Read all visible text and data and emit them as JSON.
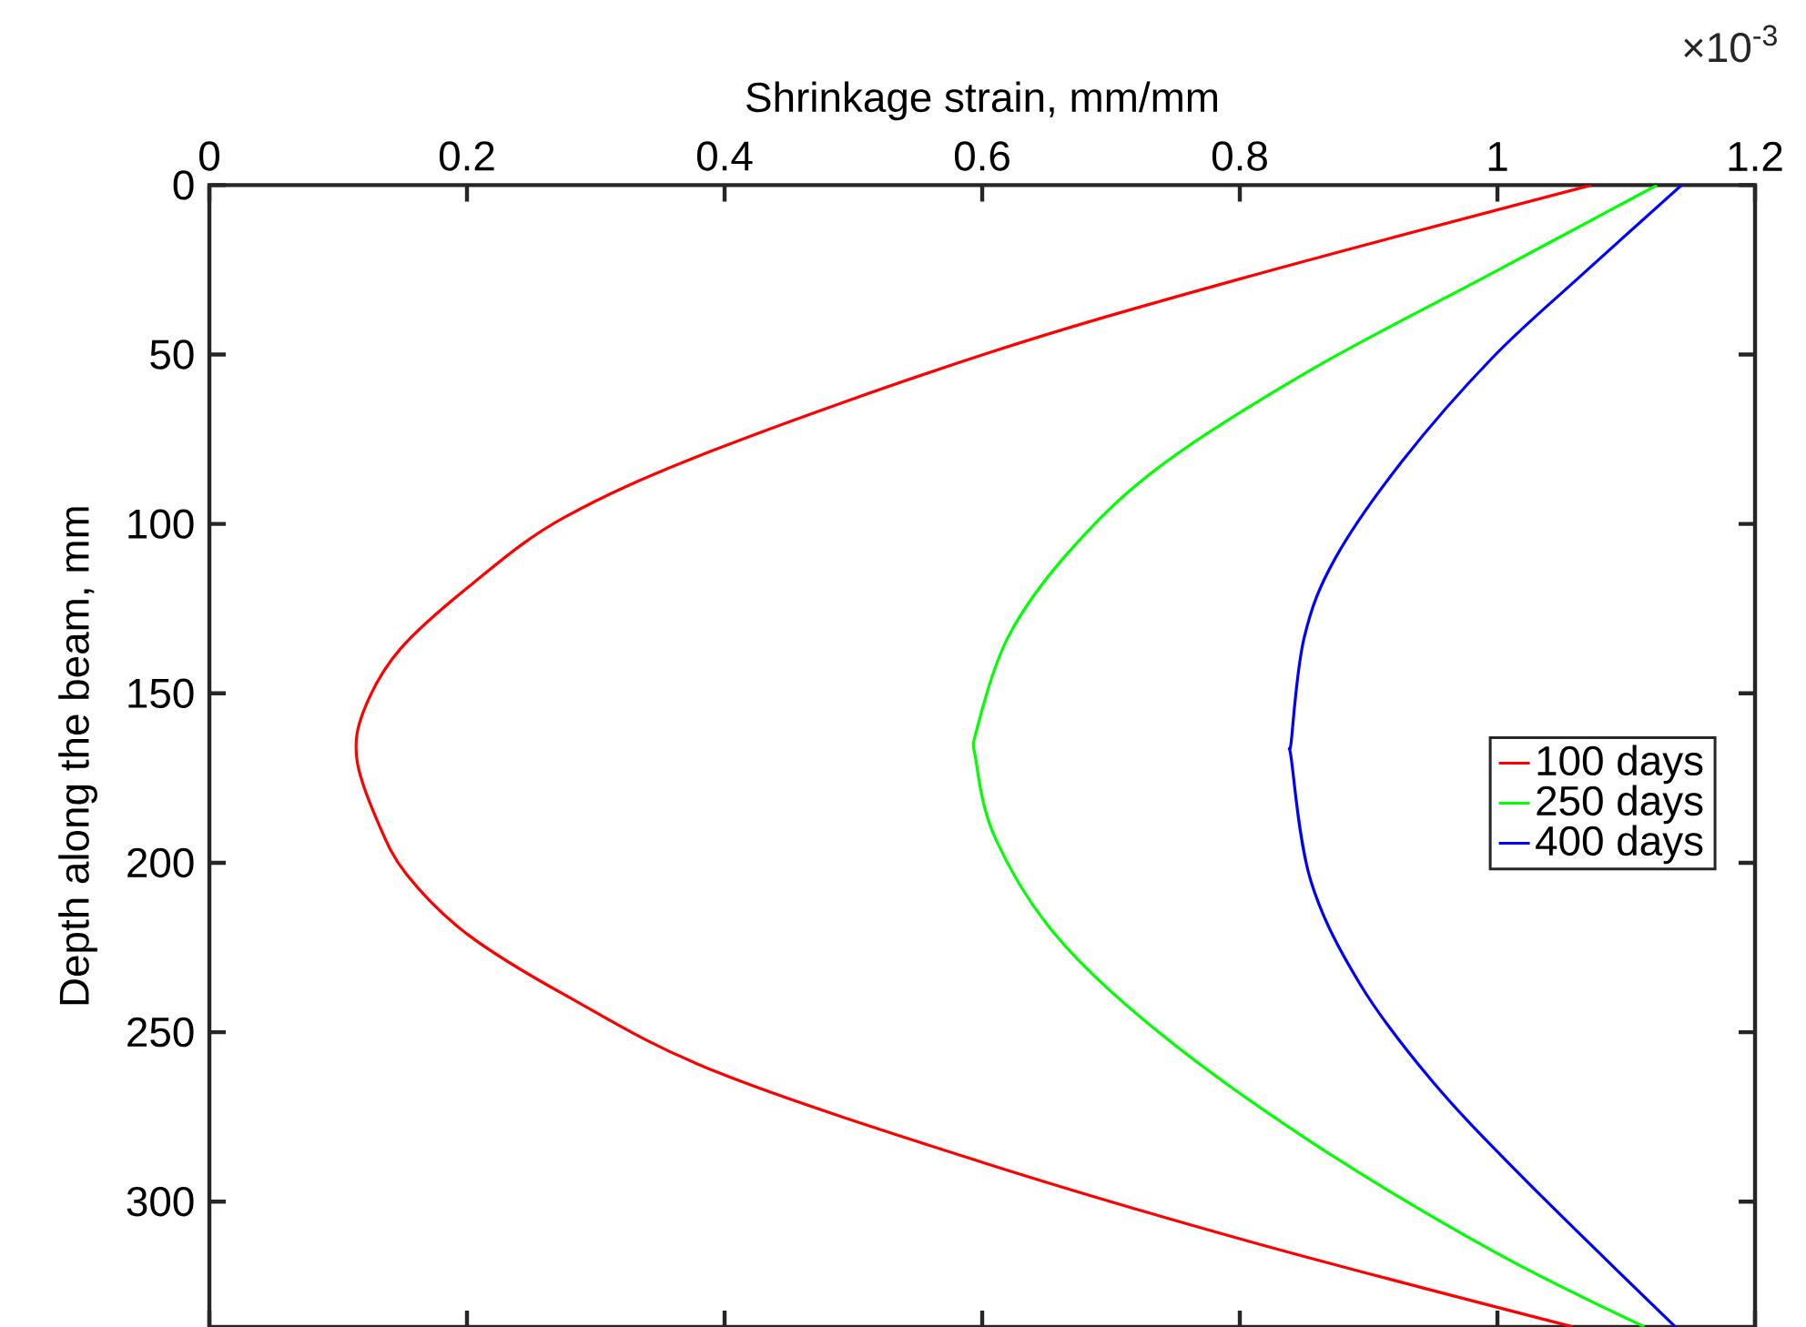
{
  "chart_data": {
    "type": "line",
    "xlabel": "Shrinkage strain, mm/mm",
    "ylabel": "Depth along the beam, mm",
    "annotations": [
      "×10$^{-3}$"
    ],
    "xlim": [
      0,
      1.2
    ],
    "xticks": [
      0,
      0.2,
      0.4,
      0.6,
      0.8,
      1,
      1.2
    ],
    "ylim": [
      337,
      0
    ],
    "yticks": [
      0,
      50,
      100,
      150,
      200,
      250,
      300
    ],
    "legend": "right",
    "grid": false,
    "marker": "none",
    "line_style": "solid",
    "series": [
      {
        "name": "100 days",
        "color": "#ff0000",
        "x": [
          1.073,
          0.799,
          0.601,
          0.393,
          0.276,
          0.205,
          0.148,
          0.12,
          0.1145,
          0.13,
          0.153,
          0.2,
          0.276,
          0.393,
          0.601,
          0.808,
          1.058
        ],
        "values": [
          0,
          27.8,
          50,
          78,
          98,
          117.4,
          137,
          155,
          169.4,
          187.3,
          203.4,
          221,
          239,
          261.6,
          288.5,
          311.8,
          336.9
        ]
      },
      {
        "name": "250 days",
        "color": "#00ff00",
        "x": [
          1.124,
          0.996,
          0.855,
          0.737,
          0.667,
          0.62,
          0.596,
          0.595,
          0.61,
          0.657,
          0.737,
          0.855,
          0.996,
          1.114
        ],
        "values": [
          0,
          26,
          54.6,
          83.3,
          108.4,
          133.5,
          160.4,
          169.4,
          192.6,
          221.3,
          250,
          282.3,
          314.5,
          336.9
        ]
      },
      {
        "name": "400 days",
        "color": "#0000ff",
        "x": [
          1.143,
          1.067,
          0.996,
          0.926,
          0.874,
          0.85,
          0.84,
          0.84,
          0.855,
          0.893,
          0.949,
          1.02,
          1.138
        ],
        "values": [
          0,
          26,
          51,
          81.5,
          110.2,
          133.5,
          164,
          169.4,
          205.2,
          235.6,
          264.3,
          293,
          336.9
        ]
      }
    ]
  }
}
